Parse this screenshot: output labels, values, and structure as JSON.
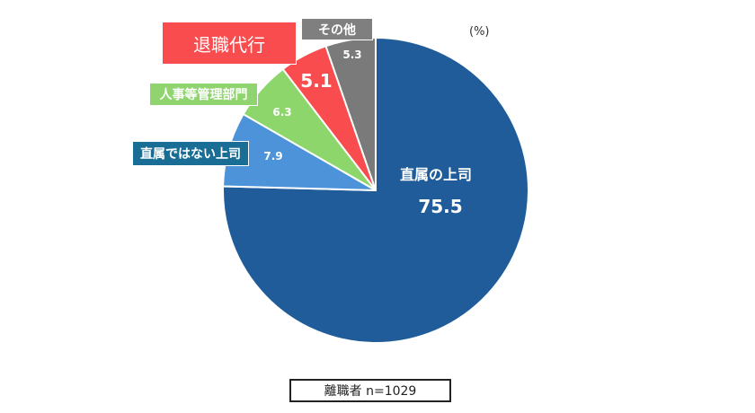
{
  "chart_data": {
    "type": "pie",
    "unit_label": "(%)",
    "start": "top",
    "direction": "clockwise",
    "slices": [
      {
        "label": "直属の上司",
        "value": 75.5,
        "color": "#1f5c99"
      },
      {
        "label": "直属ではない上司",
        "value": 7.9,
        "color": "#4d93d9",
        "label_color": "#1a6e96"
      },
      {
        "label": "人事等管理部門",
        "value": 6.3,
        "color": "#8cd66b"
      },
      {
        "label": "退職代行",
        "value": 5.1,
        "color": "#f94c4f"
      },
      {
        "label": "その他",
        "value": 5.3,
        "color": "#7a7a7a"
      }
    ],
    "note": "離職者  n=1029"
  }
}
